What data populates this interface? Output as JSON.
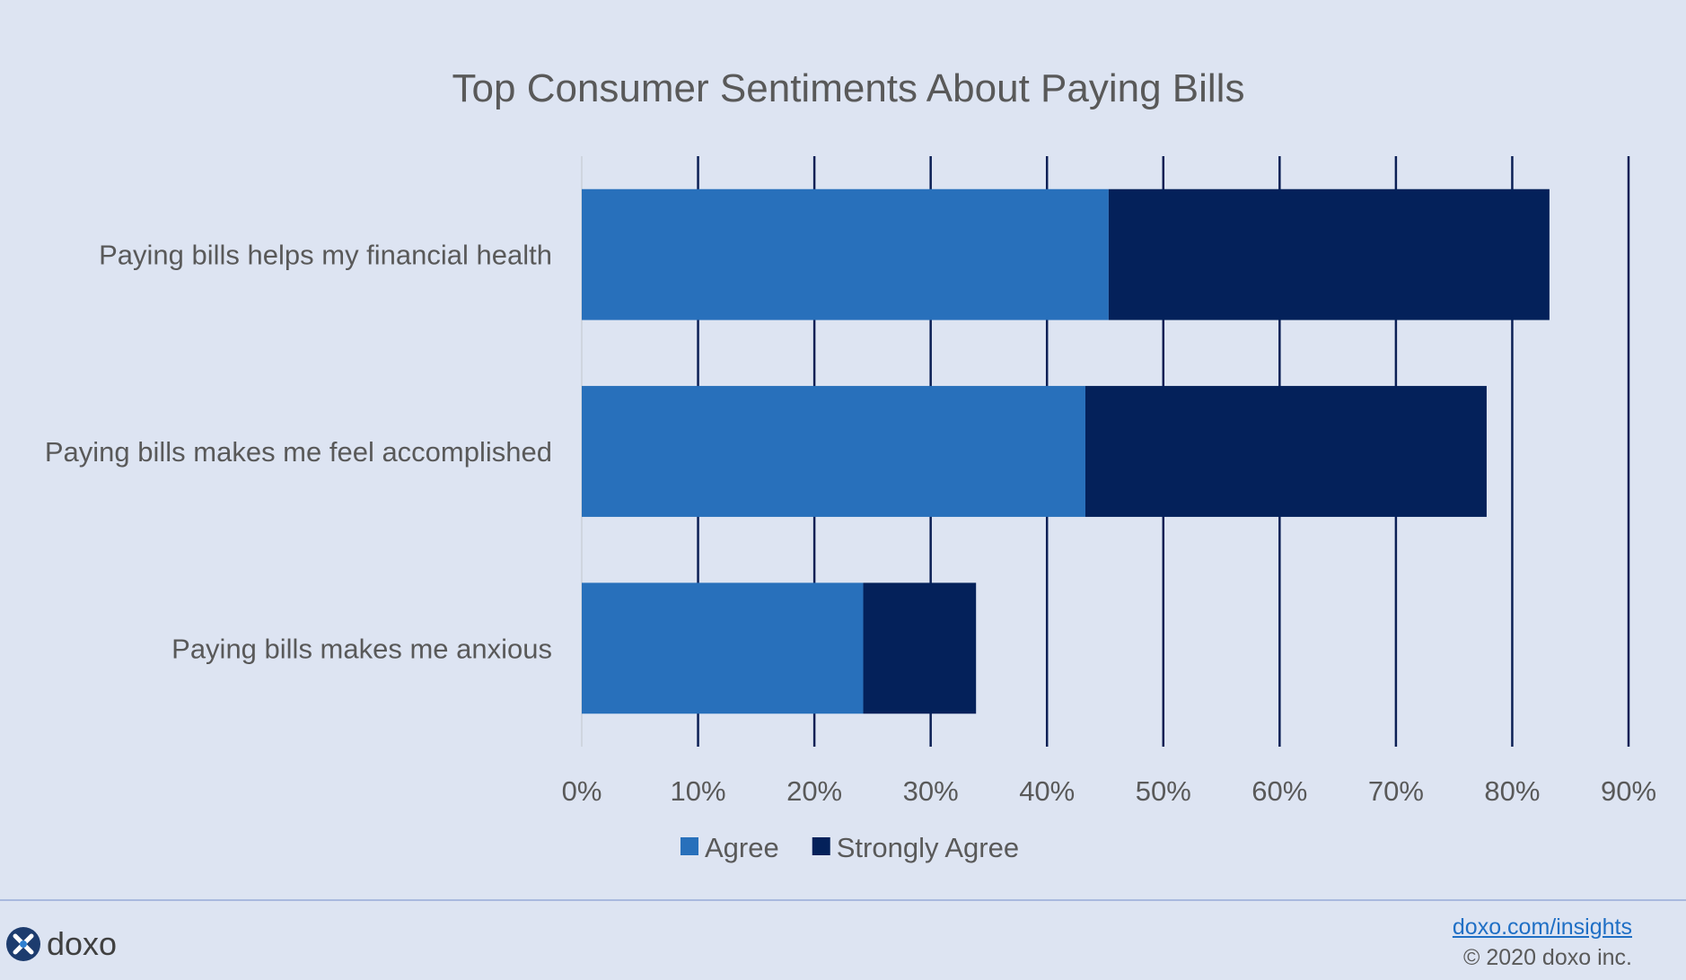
{
  "chart_data": {
    "type": "bar",
    "orientation": "horizontal",
    "stacked": true,
    "title": "Top Consumer Sentiments About Paying Bills",
    "categories": [
      "Paying bills helps my financial health",
      "Paying bills makes me feel accomplished",
      "Paying bills makes me anxious"
    ],
    "series": [
      {
        "name": "Agree",
        "values": [
          45.3,
          43.3,
          24.2
        ],
        "color": "#2870bb"
      },
      {
        "name": "Strongly Agree",
        "values": [
          37.9,
          34.5,
          9.7
        ],
        "color": "#04215a"
      }
    ],
    "xlim": [
      0,
      90
    ],
    "xticks": [
      "0%",
      "10%",
      "20%",
      "30%",
      "40%",
      "50%",
      "60%",
      "70%",
      "80%",
      "90%"
    ],
    "grid": true,
    "legend": "bottom"
  },
  "footer": {
    "logo_text": "doxo",
    "logo_icon": "doxo-logo-icon",
    "link": "doxo.com/insights",
    "copyright": "© 2020 doxo inc."
  }
}
